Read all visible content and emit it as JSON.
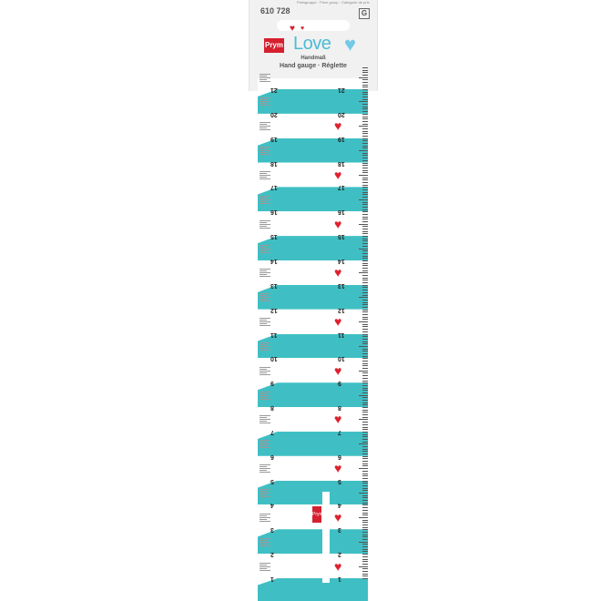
{
  "package": {
    "price_group_label": "Preisgruppe · Price group · Catégorie de prix",
    "article_number": "610 728",
    "price_group": "G",
    "brand": "Prym",
    "line": "Love",
    "title_de": "Handmaß",
    "title_en_fr": "Hand gauge · Réglette"
  },
  "ruler": {
    "numbers": [
      1,
      2,
      3,
      4,
      5,
      6,
      7,
      8,
      9,
      10,
      11,
      12,
      13,
      14,
      15,
      16,
      17,
      18,
      19,
      20,
      21
    ],
    "colors": {
      "band": "#3fbfc4",
      "heart": "#e0202d",
      "brand": "#d5202f"
    },
    "slider_brand": "Prym"
  }
}
